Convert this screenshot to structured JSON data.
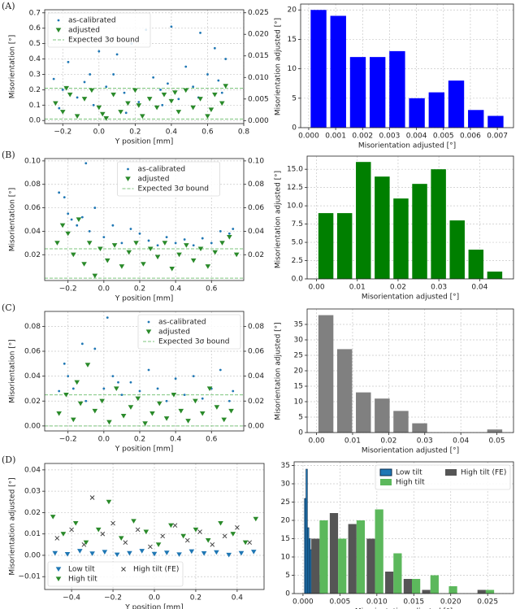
{
  "chart_data": [
    {
      "type": "scatter",
      "label": "(A)",
      "xlabel": "Y position [mm]",
      "ylabel": "Misorientation [°]",
      "y2label": "Misorientation adjusted [°]",
      "xlim": [
        -0.3,
        0.8
      ],
      "xticks": [
        {
          "value": -0.2,
          "label": "−0.2"
        },
        {
          "value": 0,
          "label": "0.0"
        },
        0.2,
        0.4,
        0.6,
        0.8
      ],
      "ylim": [
        -0.02,
        0.72
      ],
      "yticks": [
        {
          "value": 0,
          "label": "0.0"
        },
        0.1,
        0.2,
        0.3,
        0.4,
        0.5,
        0.6,
        0.7
      ],
      "y2lim": [
        -0.0007,
        0.0257
      ],
      "y2ticks": [
        {
          "value": 0,
          "label": "0.000"
        },
        0.005,
        {
          "value": 0.01,
          "label": "0.010"
        },
        0.015,
        {
          "value": 0.02,
          "label": "0.020"
        },
        0.025
      ],
      "grid": true,
      "legend": "upper left",
      "series": [
        {
          "name": "as-calibrated",
          "color": "#1f77b4",
          "marker": "dot",
          "x": [
            -0.25,
            -0.2,
            -0.17,
            -0.12,
            -0.08,
            -0.03,
            0.0,
            0.04,
            0.08,
            0.1,
            0.14,
            0.18,
            0.22,
            0.26,
            0.3,
            0.34,
            0.38,
            0.4,
            0.44,
            0.48,
            0.52,
            0.56,
            0.6,
            0.64,
            0.68,
            0.7,
            -0.22,
            -0.05,
            0.15,
            0.35,
            0.55,
            0.66
          ],
          "values": [
            0.27,
            0.2,
            0.38,
            0.15,
            0.25,
            0.1,
            0.45,
            0.22,
            0.3,
            0.43,
            0.18,
            0.5,
            0.12,
            0.59,
            0.28,
            0.2,
            0.24,
            0.61,
            0.14,
            0.35,
            0.22,
            0.57,
            0.3,
            0.47,
            0.18,
            0.4,
            0.08,
            0.3,
            0.05,
            0.1,
            0.15,
            0.26
          ]
        },
        {
          "name": "adjusted",
          "color": "#2a8a2a",
          "marker": "triangle",
          "axis": "y2",
          "x": [
            -0.24,
            -0.2,
            -0.16,
            -0.12,
            -0.08,
            -0.04,
            0,
            0.04,
            0.08,
            0.12,
            0.16,
            0.2,
            0.24,
            0.28,
            0.32,
            0.36,
            0.4,
            0.44,
            0.48,
            0.52,
            0.56,
            0.6,
            0.64,
            0.68,
            0.7,
            -0.18,
            0.02,
            0.22,
            0.42,
            0.62
          ],
          "values": [
            0.004,
            0.002,
            0.006,
            0.001,
            0.005,
            0.007,
            0.003,
            0.0005,
            0.006,
            0.002,
            0.004,
            0.007,
            0.001,
            0.005,
            0.003,
            0.006,
            0.0045,
            0.002,
            0.007,
            0.003,
            0.005,
            0.001,
            0.006,
            0.004,
            0.008,
            0.0075,
            0.0015,
            0.0035,
            0.0065,
            0.0025
          ]
        }
      ],
      "hlines": {
        "name": "Expected 3σ bound",
        "color": "#7cc47c",
        "values": [
          0.21,
          0.01
        ]
      }
    },
    {
      "type": "histogram",
      "xlabel": "Misorientation adjusted [°]",
      "color": "#0000ff",
      "bins": [
        0,
        0.00073,
        0.00146,
        0.00219,
        0.00292,
        0.00365,
        0.00438,
        0.00511,
        0.00584,
        0.00657,
        0.0073
      ],
      "values": [
        20,
        19,
        12,
        12,
        13,
        5,
        6,
        8,
        3,
        2
      ],
      "xlim": [
        -0.0003,
        0.0076
      ],
      "xticks": [
        {
          "value": 0,
          "label": "0.000"
        },
        0.001,
        0.002,
        0.003,
        0.004,
        0.005,
        0.006,
        0.007
      ],
      "ylim": [
        0,
        21
      ],
      "yticks": [
        0,
        5,
        10,
        15,
        20
      ],
      "grid": true
    },
    {
      "type": "scatter",
      "label": "(B)",
      "xlabel": "Y position [mm]",
      "ylabel": "Misorientation [°]",
      "y2label": "Misorientation adjusted [°]",
      "xlim": [
        -0.33,
        0.78
      ],
      "xticks": [
        {
          "value": -0.2,
          "label": "−0.2"
        },
        {
          "value": 0,
          "label": "0.0"
        },
        0.2,
        0.4,
        0.6
      ],
      "ylim": [
        -0.002,
        0.102
      ],
      "yticks": [
        0.02,
        0.04,
        0.06,
        0.08,
        {
          "value": 0.1,
          "label": "0.10"
        }
      ],
      "y2lim": [
        -0.002,
        0.102
      ],
      "y2ticks": [
        0.02,
        0.04,
        0.06,
        0.08,
        {
          "value": 0.1,
          "label": "0.10"
        }
      ],
      "grid": true,
      "legend": "upper center",
      "series": [
        {
          "name": "as-calibrated",
          "color": "#1f77b4",
          "marker": "dot",
          "x": [
            -0.25,
            -0.22,
            -0.2,
            -0.18,
            -0.15,
            -0.1,
            -0.08,
            -0.05,
            0.0,
            0.05,
            0.1,
            0.15,
            0.2,
            0.25,
            0.3,
            0.35,
            0.4,
            0.45,
            0.5,
            0.55,
            0.6,
            0.65,
            0.7,
            0.72,
            -0.12
          ],
          "values": [
            0.073,
            0.069,
            0.055,
            0.05,
            0.045,
            0.098,
            0.04,
            0.06,
            0.035,
            0.045,
            0.03,
            0.042,
            0.038,
            0.032,
            0.028,
            0.035,
            0.03,
            0.033,
            0.028,
            0.034,
            0.03,
            0.04,
            0.038,
            0.042,
            0.052
          ]
        },
        {
          "name": "adjusted",
          "color": "#2a8a2a",
          "marker": "triangle",
          "axis": "y2",
          "x": [
            -0.26,
            -0.23,
            -0.2,
            -0.17,
            -0.14,
            -0.11,
            -0.08,
            -0.05,
            -0.02,
            0.02,
            0.06,
            0.1,
            0.14,
            0.18,
            0.22,
            0.26,
            0.3,
            0.34,
            0.38,
            0.42,
            0.46,
            0.5,
            0.54,
            0.58,
            0.62,
            0.66,
            0.7,
            0.74
          ],
          "values": [
            0.03,
            0.045,
            0.038,
            0.02,
            0.05,
            0.012,
            0.03,
            0.002,
            0.025,
            0.015,
            0.028,
            0.01,
            0.022,
            0.03,
            0.012,
            0.025,
            0.018,
            0.03,
            0.008,
            0.02,
            0.028,
            0.015,
            0.025,
            0.01,
            0.022,
            0.03,
            0.035,
            0.02
          ]
        }
      ],
      "hlines": {
        "name": "Expected 3σ bound",
        "color": "#7cc47c",
        "values": [
          0.025,
          0
        ]
      }
    },
    {
      "type": "histogram",
      "xlabel": "Misorientation adjusted [°]",
      "color": "#007f00",
      "bins": [
        0,
        0.0046,
        0.0092,
        0.0138,
        0.0184,
        0.023,
        0.0276,
        0.0322,
        0.0368,
        0.0414,
        0.046
      ],
      "values": [
        9,
        9,
        16,
        14,
        11,
        13,
        15,
        8,
        4,
        1
      ],
      "xlim": [
        -0.0023,
        0.0483
      ],
      "xticks": [
        {
          "value": 0,
          "label": "0.00"
        },
        0.01,
        0.02,
        0.03,
        0.04
      ],
      "ylim": [
        0,
        16.8
      ],
      "yticks": [
        {
          "value": 0,
          "label": "0.0"
        },
        2.5,
        {
          "value": 5,
          "label": "5.0"
        },
        7.5,
        {
          "value": 10,
          "label": "10.0"
        },
        12.5,
        {
          "value": 15,
          "label": "15.0"
        }
      ],
      "grid": true
    },
    {
      "type": "scatter",
      "label": "(C)",
      "xlabel": "Y position [mm]",
      "ylabel": "Misorientation [°]",
      "y2label": "Misorientation adjusted [°]",
      "xlim": [
        -0.33,
        0.78
      ],
      "xticks": [
        {
          "value": -0.2,
          "label": "−0.2"
        },
        {
          "value": 0,
          "label": "0.0"
        },
        0.2,
        0.4,
        0.6
      ],
      "ylim": [
        -0.004,
        0.092
      ],
      "yticks": [
        {
          "value": 0,
          "label": "0.00"
        },
        0.02,
        0.04,
        0.06,
        0.08
      ],
      "y2lim": [
        -0.004,
        0.092
      ],
      "y2ticks": [
        {
          "value": 0,
          "label": "0.00"
        },
        0.02,
        0.04,
        0.06,
        0.08
      ],
      "grid": true,
      "legend": "upper right",
      "series": [
        {
          "name": "as-calibrated",
          "color": "#1f77b4",
          "marker": "dot",
          "x": [
            -0.25,
            -0.2,
            -0.17,
            -0.12,
            -0.1,
            -0.05,
            0.0,
            0.02,
            0.05,
            0.1,
            0.15,
            0.2,
            0.25,
            0.3,
            0.35,
            0.4,
            0.45,
            0.5,
            0.55,
            0.6,
            0.65,
            0.7,
            0.72,
            -0.22,
            0.08
          ],
          "values": [
            0.028,
            0.04,
            0.03,
            0.066,
            0.02,
            0.062,
            0.03,
            0.087,
            0.04,
            0.025,
            0.035,
            0.028,
            0.045,
            0.03,
            0.02,
            0.038,
            0.025,
            0.04,
            0.022,
            0.03,
            0.045,
            0.02,
            0.028,
            0.05,
            0.035
          ]
        },
        {
          "name": "adjusted",
          "color": "#2a8a2a",
          "marker": "triangle",
          "axis": "y2",
          "x": [
            -0.25,
            -0.21,
            -0.17,
            -0.13,
            -0.09,
            -0.05,
            -0.01,
            0.03,
            0.07,
            0.11,
            0.15,
            0.19,
            0.23,
            0.27,
            0.31,
            0.35,
            0.39,
            0.43,
            0.47,
            0.51,
            0.55,
            0.59,
            0.63,
            0.67,
            0.71,
            -0.15
          ],
          "values": [
            0.01,
            0.025,
            0.005,
            0.018,
            0.049,
            0.012,
            0.02,
            0.003,
            0.03,
            0.008,
            0.015,
            0.022,
            0.002,
            0.01,
            0.018,
            0.006,
            0.025,
            0.012,
            0.004,
            0.02,
            0.01,
            0.03,
            0.015,
            0.005,
            0.012,
            0.035
          ]
        }
      ],
      "hlines": {
        "name": "Expected 3σ bound",
        "color": "#7cc47c",
        "values": [
          0.025,
          0
        ]
      }
    },
    {
      "type": "histogram",
      "xlabel": "Misorientation adjusted [°]",
      "color": "#808080",
      "bins": [
        0,
        0.0052,
        0.0104,
        0.0156,
        0.0208,
        0.026,
        0.0312,
        0.0364,
        0.0416,
        0.0468,
        0.052
      ],
      "values": [
        38,
        27,
        13,
        11,
        7,
        3,
        0,
        0,
        0,
        1
      ],
      "xlim": [
        -0.0026,
        0.0546
      ],
      "xticks": [
        {
          "value": 0,
          "label": "0.00"
        },
        0.01,
        0.02,
        0.03,
        0.04,
        0.05
      ],
      "ylim": [
        0,
        40
      ],
      "yticks": [
        0,
        5,
        10,
        15,
        20,
        25,
        30,
        35
      ],
      "grid": true
    },
    {
      "type": "scatter",
      "label": "(D)",
      "xlabel": "Y position [mm]",
      "ylabel": "Misorientation adjusted [°]",
      "xlim": [
        -0.53,
        0.53
      ],
      "xticks": [
        {
          "value": -0.4,
          "label": "−0.4"
        },
        {
          "value": -0.2,
          "label": "−0.2"
        },
        {
          "value": 0,
          "label": "0.0"
        },
        0.2,
        0.4
      ],
      "ylim": [
        -0.016,
        0.043
      ],
      "yticks": [
        {
          "value": -0.01,
          "label": "−0.01"
        },
        {
          "value": 0,
          "label": "0.00"
        },
        0.01,
        0.02,
        0.03,
        0.04
      ],
      "grid": true,
      "legend": "lower left",
      "series": [
        {
          "name": "Low tilt",
          "color": "#1f77b4",
          "marker": "triangle",
          "x": [
            -0.48,
            -0.42,
            -0.36,
            -0.3,
            -0.24,
            -0.18,
            -0.12,
            -0.06,
            0,
            0.06,
            0.12,
            0.18,
            0.24,
            0.3,
            0.36,
            0.42,
            0.48
          ],
          "values": [
            0.001,
            0.0005,
            0.002,
            0.0008,
            0.0015,
            0.0003,
            0.001,
            0.002,
            0.0006,
            0.0012,
            0.0004,
            0.0018,
            0.0009,
            0.0014,
            0.0002,
            0.001,
            0.0016
          ]
        },
        {
          "name": "High tilt (FE)",
          "color": "#404040",
          "marker": "x",
          "x": [
            -0.47,
            -0.4,
            -0.34,
            -0.3,
            -0.25,
            -0.2,
            -0.14,
            -0.08,
            -0.02,
            0.04,
            0.1,
            0.16,
            0.22,
            0.28,
            0.34,
            0.4,
            0.46
          ],
          "values": [
            0.008,
            0.012,
            0.005,
            0.027,
            0.01,
            0.015,
            0.006,
            0.012,
            0.004,
            0.009,
            0.014,
            0.007,
            0.011,
            0.005,
            0.009,
            0.013,
            0.006
          ]
        },
        {
          "name": "High tilt",
          "color": "#2a8a2a",
          "marker": "triangle",
          "x": [
            -0.49,
            -0.44,
            -0.38,
            -0.33,
            -0.27,
            -0.22,
            -0.16,
            -0.1,
            -0.04,
            0.02,
            0.08,
            0.14,
            0.2,
            0.26,
            0.32,
            0.38,
            0.44,
            0.49
          ],
          "values": [
            0.018,
            0.01,
            0.015,
            0.006,
            0.012,
            0.025,
            0.008,
            0.016,
            0.011,
            0.005,
            0.014,
            0.009,
            0.012,
            0.007,
            0.015,
            0.01,
            0.006,
            0.017
          ]
        }
      ]
    },
    {
      "type": "histogram",
      "xlabel": "Misorientation adjusted [°]",
      "legend": "upper right",
      "xlim": [
        -0.0012,
        0.0285
      ],
      "xticks": [
        {
          "value": 0,
          "label": "0.000"
        },
        0.005,
        {
          "value": 0.01,
          "label": "0.010"
        },
        0.015,
        {
          "value": 0.02,
          "label": "0.020"
        },
        0.025
      ],
      "ylim": [
        0,
        36
      ],
      "yticks": [
        0,
        5,
        10,
        15,
        20,
        25,
        30,
        35
      ],
      "grid": true,
      "series": [
        {
          "name": "Low tilt",
          "color": "#1f77b4",
          "edge": "#0a2a4a",
          "bins": [
            0.0002,
            0.0004,
            0.0006,
            0.0008,
            0.001,
            0.0012,
            0.0014,
            0.0016,
            0.0018,
            0.002,
            0.0022,
            0.0024,
            0.0026,
            0.0028
          ],
          "values": [
            26,
            34,
            18,
            15,
            12,
            14,
            11,
            12,
            8,
            5,
            3,
            2,
            1
          ]
        },
        {
          "name": "High tilt (FE)",
          "color": "#555555",
          "bins": [
            0.001,
            0.0035,
            0.006,
            0.0085,
            0.011,
            0.0135,
            0.016,
            0.0185,
            0.021,
            0.0235,
            0.026,
            0.0285
          ],
          "values": [
            15,
            22,
            19,
            15,
            6,
            4,
            1,
            0,
            0,
            1,
            0
          ]
        },
        {
          "name": "High tilt",
          "color": "#5cb85c",
          "bins": [
            0.001,
            0.0035,
            0.006,
            0.0085,
            0.011,
            0.0135,
            0.016,
            0.0185,
            0.021,
            0.0235,
            0.026,
            0.0285
          ],
          "values": [
            20,
            15,
            20,
            23,
            11,
            4,
            5,
            2,
            0,
            1,
            0
          ]
        }
      ]
    }
  ]
}
